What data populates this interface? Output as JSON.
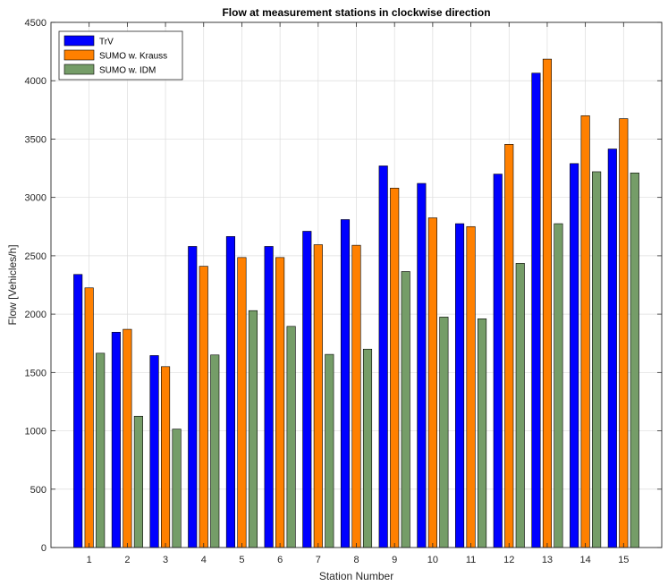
{
  "chart_data": {
    "type": "bar",
    "title": "Flow at measurement stations in clockwise direction",
    "xlabel": "Station Number",
    "ylabel": "Flow [Vehicles/h]",
    "categories": [
      "1",
      "2",
      "3",
      "4",
      "5",
      "6",
      "7",
      "8",
      "9",
      "10",
      "11",
      "12",
      "13",
      "14",
      "15"
    ],
    "ylim": [
      0,
      4500
    ],
    "yticks": [
      0,
      500,
      1000,
      1500,
      2000,
      2500,
      3000,
      3500,
      4000,
      4500
    ],
    "grid": true,
    "legend_position": "top-left",
    "series": [
      {
        "name": "TrV",
        "color": "#0000ff",
        "values": [
          2340,
          1845,
          1645,
          2580,
          2665,
          2580,
          2710,
          2810,
          3270,
          3120,
          2775,
          3200,
          4065,
          3290,
          3415
        ]
      },
      {
        "name": "SUMO w. Krauss",
        "color": "#ff8000",
        "values": [
          2225,
          1870,
          1550,
          2410,
          2485,
          2485,
          2595,
          2590,
          3080,
          2825,
          2750,
          3455,
          4185,
          3700,
          3675
        ]
      },
      {
        "name": "SUMO w. IDM",
        "color": "#759d68",
        "values": [
          1665,
          1125,
          1015,
          1650,
          2030,
          1895,
          1655,
          1700,
          2365,
          1975,
          1960,
          2435,
          2775,
          3220,
          3210
        ]
      }
    ]
  }
}
